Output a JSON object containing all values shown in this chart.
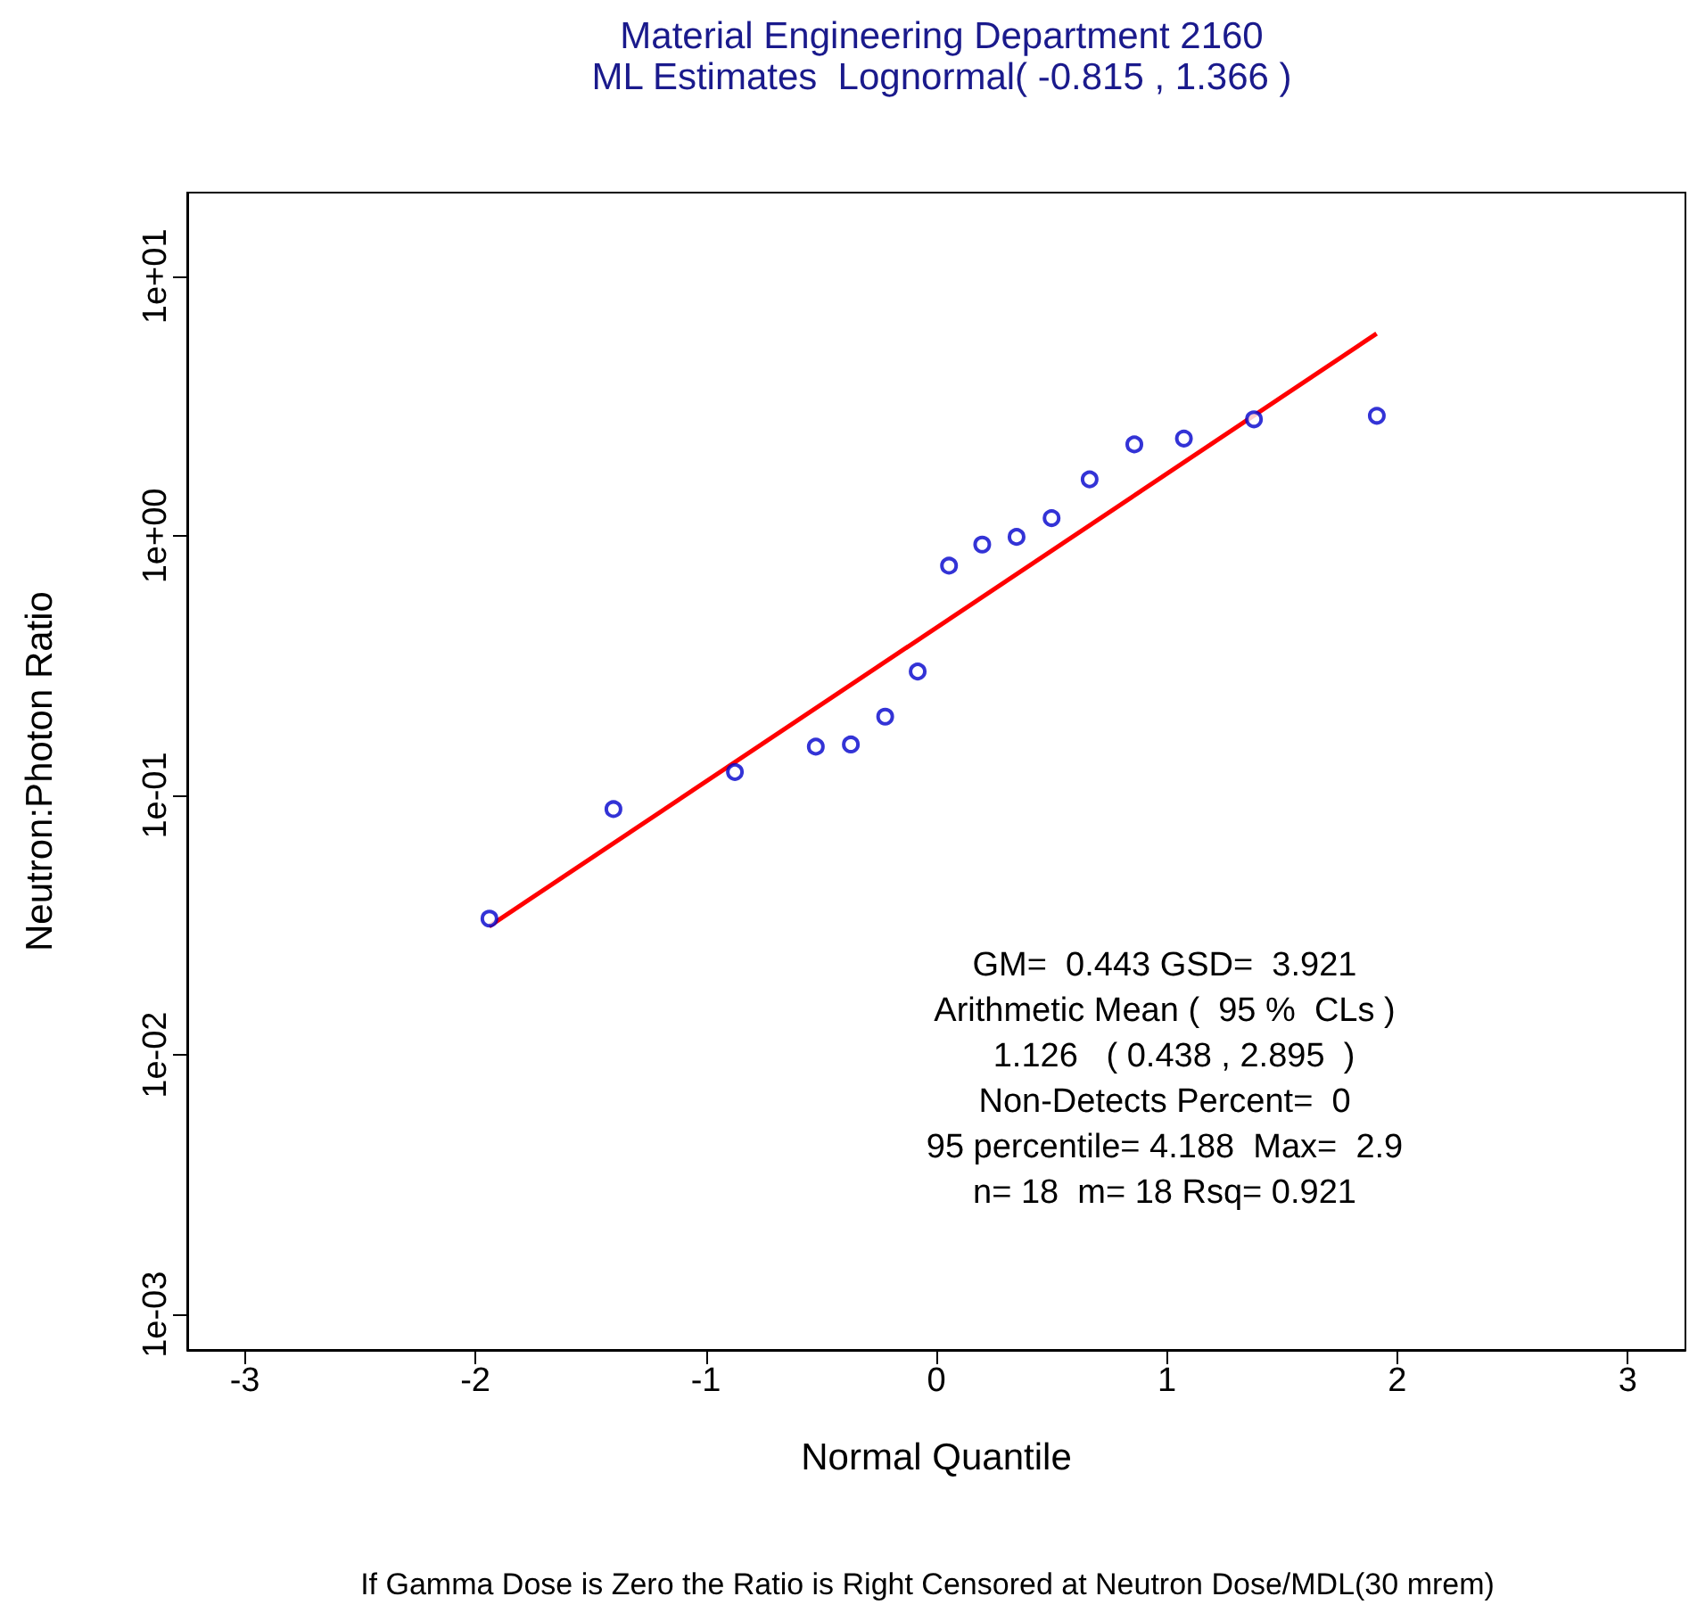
{
  "chart_data": {
    "type": "scatter",
    "title": "Material Engineering Department 2160",
    "subtitle": "ML Estimates  Lognormal( -0.815 , 1.366 )",
    "xlabel": "Normal Quantile",
    "ylabel": "Neutron:Photon Ratio",
    "log": "y",
    "xlim": [
      -3.25,
      3.25
    ],
    "xticks": [
      -3,
      -2,
      -1,
      0,
      1,
      2,
      3
    ],
    "ylim": [
      0.00073,
      21
    ],
    "yticks": [
      {
        "value": 0.001,
        "label": "1e-03"
      },
      {
        "value": 0.01,
        "label": "1e-02"
      },
      {
        "value": 0.1,
        "label": "1e-01"
      },
      {
        "value": 1,
        "label": "1e+00"
      },
      {
        "value": 10,
        "label": "1e+01"
      }
    ],
    "series": [
      {
        "type": "scatter",
        "marker": "circle",
        "color": "#0000cc",
        "x": [
          -1.939,
          -1.401,
          -0.874,
          -0.523,
          -0.371,
          -0.222,
          -0.081,
          0.055,
          0.199,
          0.348,
          0.5,
          0.665,
          0.859,
          1.074,
          1.378,
          1.911
        ],
        "values": [
          0.0335,
          0.0885,
          0.123,
          0.154,
          0.157,
          0.201,
          0.3,
          0.767,
          0.925,
          0.99,
          1.17,
          1.65,
          2.25,
          2.37,
          2.81,
          2.9
        ]
      },
      {
        "type": "line",
        "marker": "none",
        "color": "#ff0000",
        "x": [
          -1.94,
          1.91
        ],
        "values": [
          0.0313,
          6.01
        ]
      }
    ],
    "annotations": [
      "GM=  0.443 GSD=  3.921",
      "Arithmetic Mean (  95 %  CLs )",
      "  1.126   ( 0.438 , 2.895  )",
      "Non-Detects Percent=  0",
      "95 percentile= 4.188  Max=  2.9",
      "n= 18  m= 18 Rsq= 0.921",
      "If Gamma Dose is Zero the Ratio is Right Censored at Neutron Dose/MDL(30 mrem)"
    ]
  }
}
